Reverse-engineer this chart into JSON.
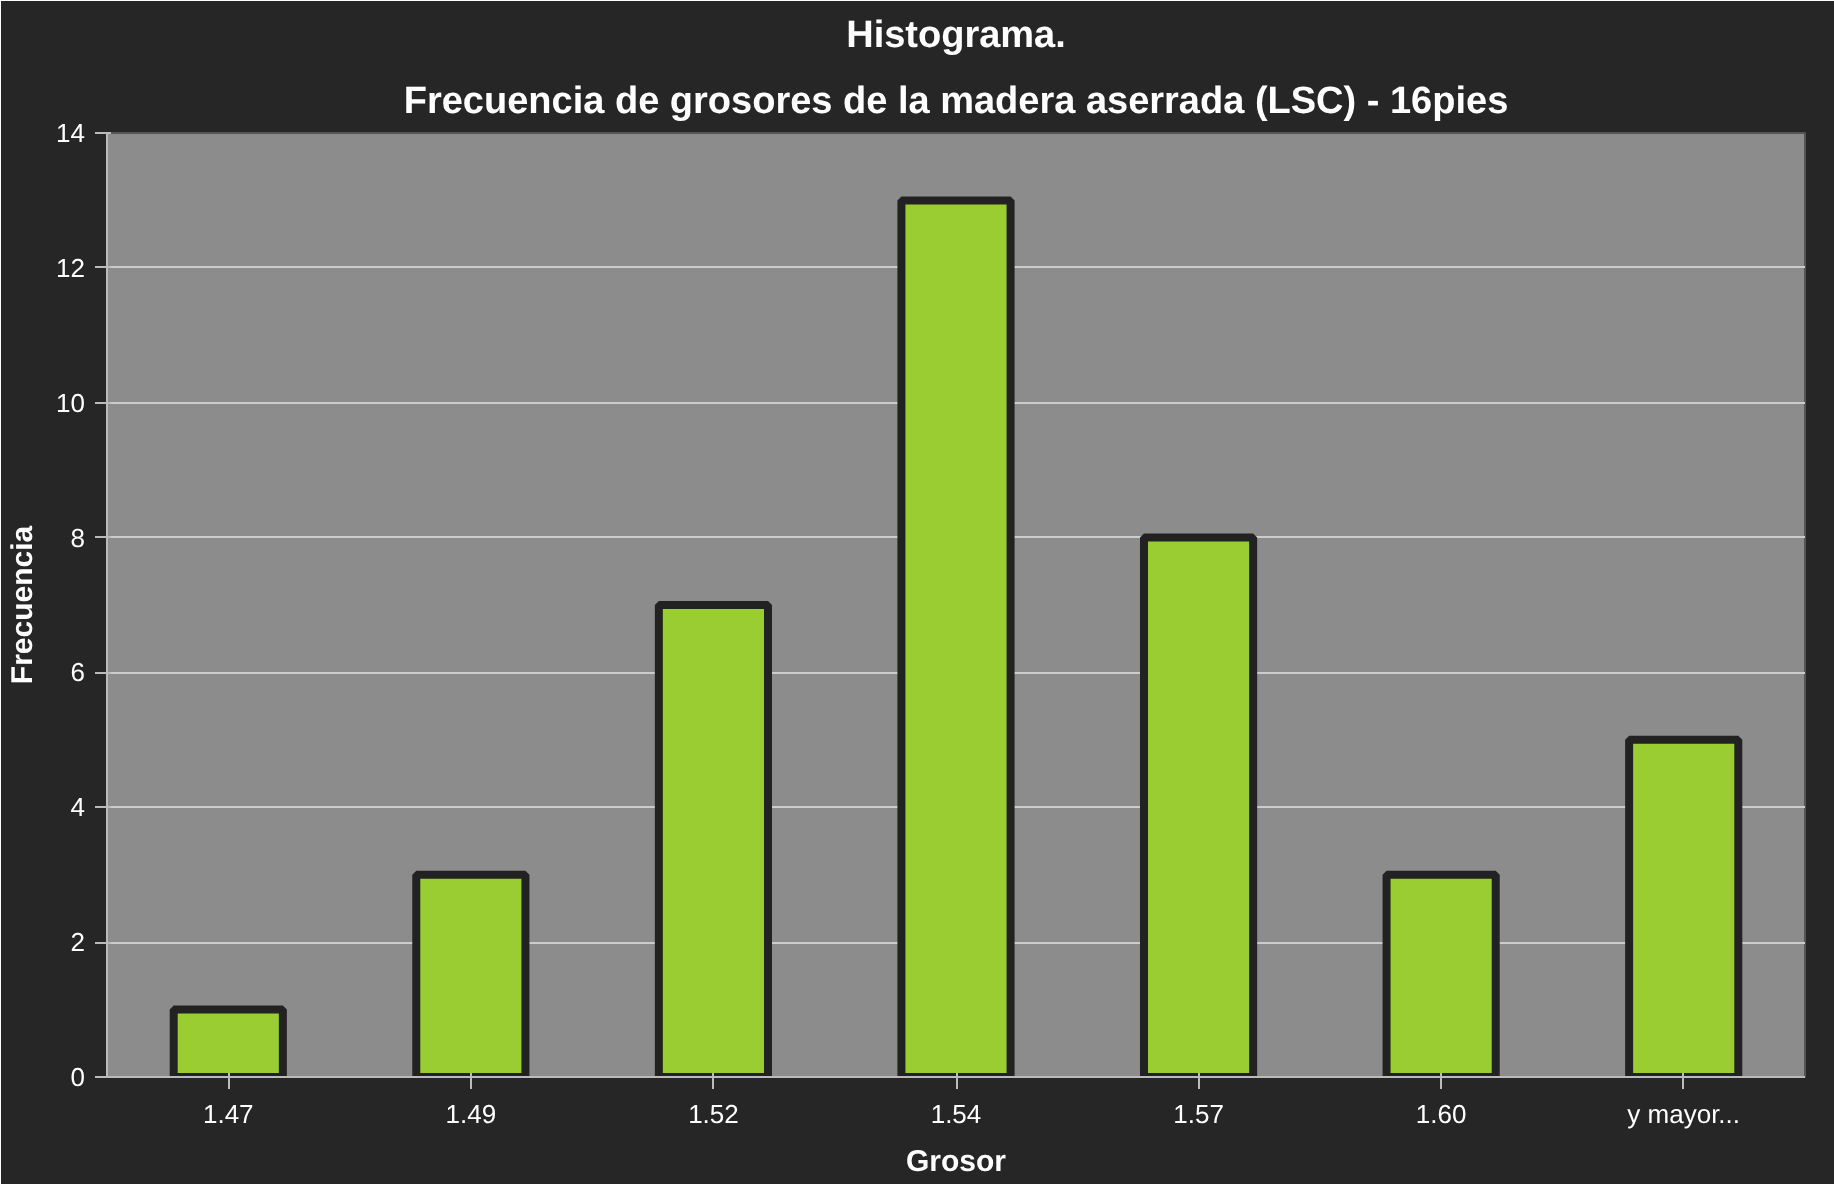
{
  "chart_data": {
    "type": "bar",
    "title": "Histograma.",
    "subtitle": "Frecuencia de grosores de la madera aserrada (LSC) - 16pies",
    "xlabel": "Grosor",
    "ylabel": "Frecuencia",
    "categories": [
      "1.47",
      "1.49",
      "1.52",
      "1.54",
      "1.57",
      "1.60",
      "y mayor..."
    ],
    "values": [
      1,
      3,
      7,
      13,
      8,
      3,
      5
    ],
    "color": "#9acd32",
    "ylim": [
      0,
      14
    ],
    "yticks": [
      0,
      2,
      4,
      6,
      8,
      10,
      12,
      14
    ],
    "grid": "y"
  }
}
